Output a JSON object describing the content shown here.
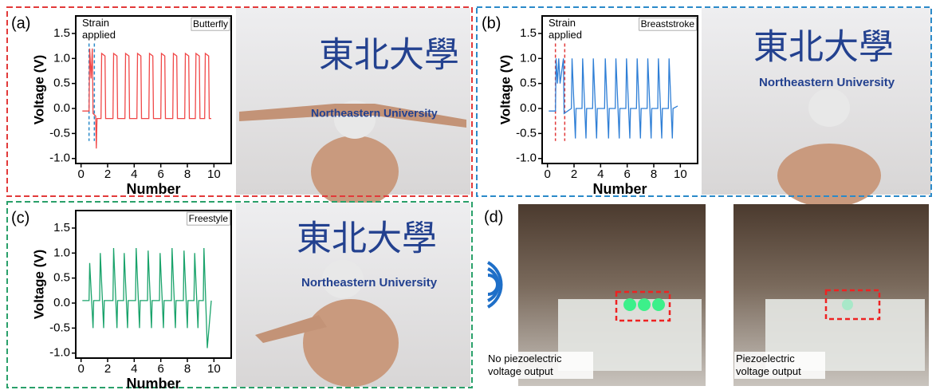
{
  "panel_labels": [
    "(a)",
    "(b)",
    "(c)",
    "(d)"
  ],
  "photo_text": {
    "chinese": "東北大學",
    "english": "Northeastern University"
  },
  "panel_d": {
    "captions": [
      "No piezoelectric voltage output",
      "Piezoelectric voltage output"
    ]
  },
  "chart_data": [
    {
      "type": "line",
      "label": "Butterfly",
      "annotation": "Strain applied",
      "strain_markers": [
        0.6,
        1.0
      ],
      "xlabel": "Number",
      "ylabel": "Voltage (V)",
      "color": "#f04848",
      "xlim": [
        -0.4,
        11.3
      ],
      "ylim": [
        -1.1,
        1.85
      ],
      "xticks": [
        0,
        2,
        4,
        6,
        8,
        10
      ],
      "yticks": [
        {
          "value": -1,
          "label": "-1.0"
        },
        {
          "value": -0.5,
          "label": "-0.5"
        },
        {
          "value": 0,
          "label": "0.0"
        },
        {
          "value": 0.5,
          "label": "0.5"
        },
        {
          "value": 1,
          "label": "1.0"
        },
        {
          "value": 1.5,
          "label": "1.5"
        }
      ],
      "x": [
        0.1,
        0.6,
        0.65,
        0.75,
        0.85,
        0.9,
        1.1,
        1.15,
        1.2,
        1.5,
        1.55,
        1.8,
        1.85,
        2.4,
        2.45,
        2.7,
        2.75,
        3.3,
        3.35,
        3.6,
        3.65,
        4.2,
        4.25,
        4.5,
        4.55,
        5.1,
        5.15,
        5.4,
        5.45,
        6.0,
        6.05,
        6.3,
        6.35,
        6.9,
        6.95,
        7.2,
        7.25,
        7.8,
        7.85,
        8.1,
        8.15,
        8.6,
        8.65,
        8.9,
        8.95,
        9.3,
        9.35,
        9.6,
        9.65,
        9.8
      ],
      "values": [
        -0.05,
        -0.05,
        1.2,
        0.6,
        1.2,
        -0.1,
        -0.15,
        -0.8,
        -0.2,
        -0.2,
        1.1,
        1.05,
        -0.2,
        -0.2,
        1.1,
        1.05,
        -0.2,
        -0.2,
        1.1,
        1.05,
        -0.2,
        -0.2,
        1.1,
        1.05,
        -0.2,
        -0.2,
        1.1,
        1.05,
        -0.2,
        -0.2,
        1.1,
        1.05,
        -0.2,
        -0.2,
        1.1,
        1.05,
        -0.2,
        -0.2,
        1.1,
        1.05,
        -0.2,
        -0.2,
        1.1,
        1.05,
        -0.2,
        -0.2,
        1.1,
        1.05,
        -0.2,
        -0.2
      ]
    },
    {
      "type": "line",
      "label": "Breaststroke",
      "annotation": "Strain applied",
      "strain_markers": [
        0.6,
        1.3
      ],
      "xlabel": "Number",
      "ylabel": "Voltage (V)",
      "color": "#2f7fd6",
      "xlim": [
        -0.4,
        11.3
      ],
      "ylim": [
        -1.1,
        1.85
      ],
      "xticks": [
        0,
        2,
        4,
        6,
        8,
        10
      ],
      "yticks": [
        {
          "value": -1,
          "label": "-1.0"
        },
        {
          "value": -0.5,
          "label": "-0.5"
        },
        {
          "value": 0,
          "label": "0.0"
        },
        {
          "value": 0.5,
          "label": "0.5"
        },
        {
          "value": 1,
          "label": "1.0"
        },
        {
          "value": 1.5,
          "label": "1.5"
        }
      ],
      "x": [
        0.1,
        0.6,
        0.65,
        0.75,
        0.85,
        0.95,
        1.2,
        1.25,
        1.8,
        1.85,
        2.1,
        2.15,
        2.6,
        2.65,
        2.9,
        2.95,
        3.4,
        3.45,
        3.7,
        3.75,
        4.3,
        4.35,
        4.6,
        4.65,
        5.1,
        5.15,
        5.4,
        5.45,
        5.9,
        5.95,
        6.2,
        6.25,
        6.7,
        6.75,
        7.0,
        7.05,
        7.5,
        7.55,
        7.8,
        7.85,
        8.3,
        8.35,
        8.6,
        8.65,
        9.1,
        9.15,
        9.4,
        9.45,
        9.8
      ],
      "values": [
        -0.05,
        -0.05,
        1.0,
        0.5,
        1.0,
        0.5,
        1.0,
        -0.1,
        0,
        1.0,
        -0.6,
        0,
        0,
        1.0,
        -0.6,
        0,
        0,
        1.0,
        -0.6,
        0,
        0,
        1.0,
        -0.6,
        0,
        0,
        1.0,
        -0.6,
        0,
        0,
        1.0,
        -0.6,
        0,
        0,
        1.0,
        -0.6,
        0,
        0,
        1.0,
        -0.6,
        0,
        0,
        1.0,
        -0.6,
        0,
        0,
        1.0,
        -0.6,
        0,
        0.05
      ]
    },
    {
      "type": "line",
      "label": "Freestyle",
      "xlabel": "Number",
      "ylabel": "Voltage (V)",
      "color": "#1aa36b",
      "xlim": [
        -0.4,
        11.3
      ],
      "ylim": [
        -1.1,
        1.85
      ],
      "xticks": [
        0,
        2,
        4,
        6,
        8,
        10
      ],
      "yticks": [
        {
          "value": -1,
          "label": "-1.0"
        },
        {
          "value": -0.5,
          "label": "-0.5"
        },
        {
          "value": 0,
          "label": "0.0"
        },
        {
          "value": 0.5,
          "label": "0.5"
        },
        {
          "value": 1,
          "label": "1.0"
        },
        {
          "value": 1.5,
          "label": "1.5"
        }
      ],
      "x": [
        0.1,
        0.6,
        0.65,
        0.9,
        0.95,
        1.4,
        1.45,
        1.7,
        1.75,
        2.4,
        2.45,
        2.7,
        2.75,
        3.2,
        3.25,
        3.5,
        3.55,
        4.1,
        4.15,
        4.4,
        4.45,
        5.0,
        5.05,
        5.3,
        5.35,
        5.9,
        5.95,
        6.2,
        6.25,
        6.8,
        6.85,
        7.1,
        7.15,
        7.7,
        7.75,
        8.0,
        8.05,
        8.5,
        8.55,
        8.8,
        8.85,
        9.2,
        9.25,
        9.5,
        9.8
      ],
      "values": [
        0.05,
        0.05,
        0.8,
        -0.5,
        0.05,
        0.05,
        1.0,
        -0.5,
        0.05,
        0.05,
        1.1,
        -0.5,
        0.05,
        0.05,
        1.0,
        -0.5,
        0.05,
        0.05,
        1.1,
        -0.5,
        0.05,
        0.05,
        1.05,
        -0.5,
        0.05,
        0.05,
        1.0,
        -0.5,
        0.05,
        0.05,
        1.1,
        -0.5,
        0.05,
        0.05,
        1.05,
        -0.5,
        0.05,
        0.05,
        1.0,
        -0.5,
        0.05,
        0.05,
        1.1,
        -0.9,
        0.05
      ]
    }
  ]
}
